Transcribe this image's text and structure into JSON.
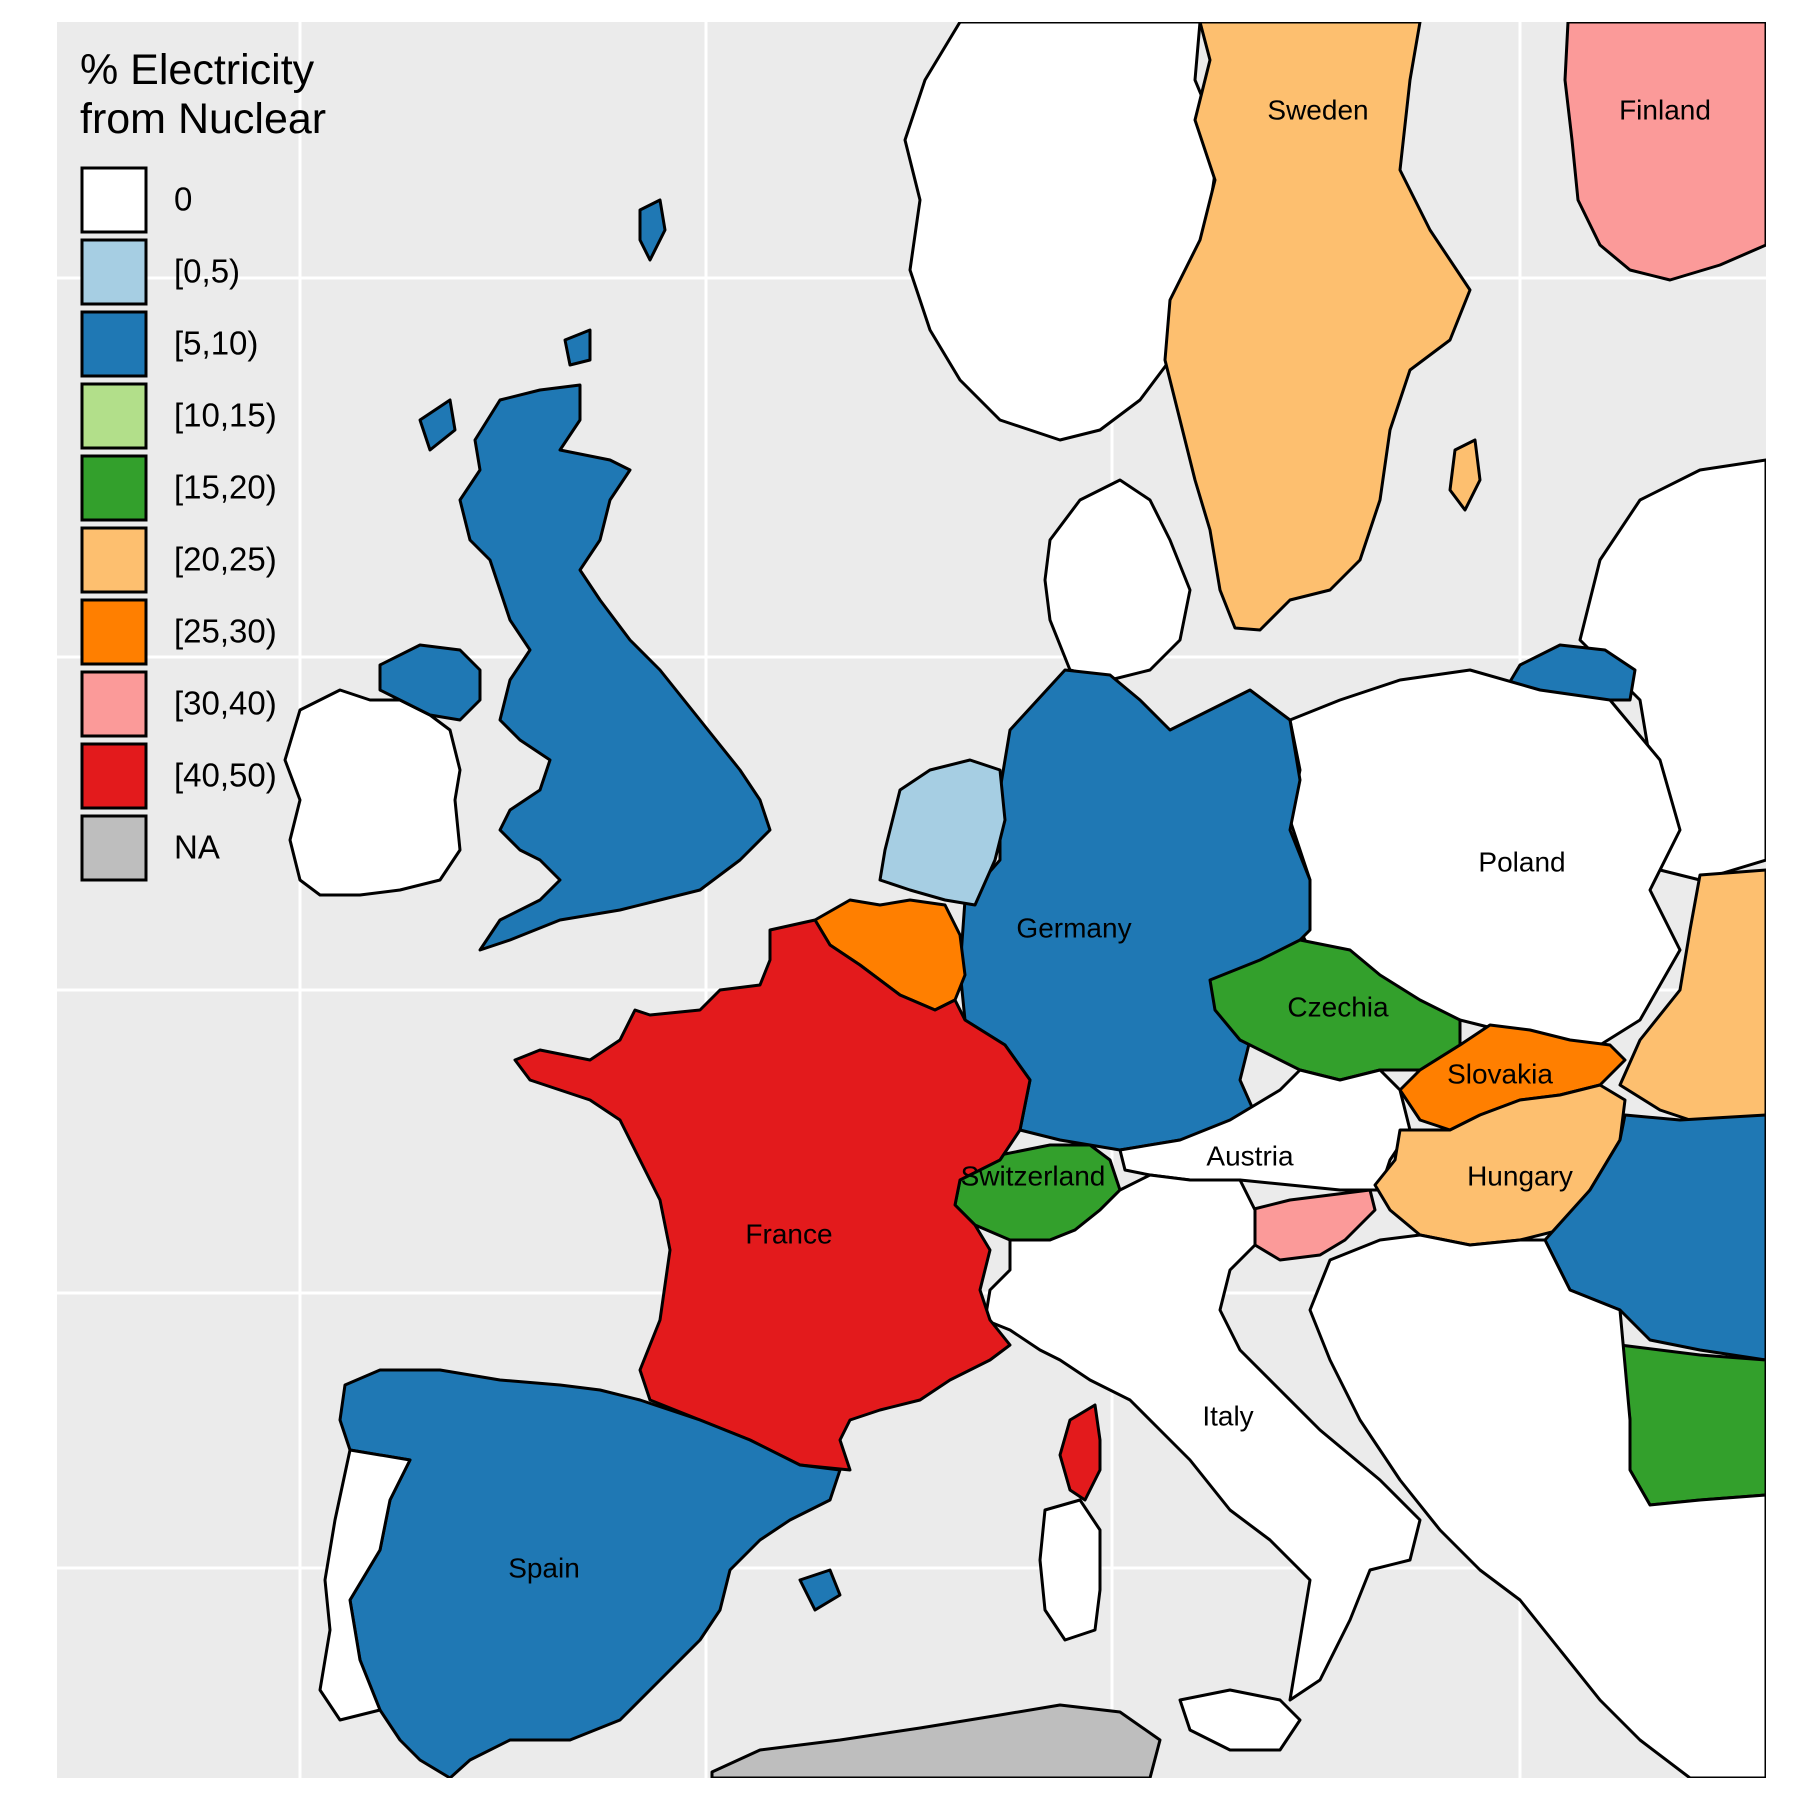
{
  "legend": {
    "title_line1": "% Electricity",
    "title_line2": "from Nuclear",
    "items": [
      {
        "label": "0",
        "color": "#FFFFFF"
      },
      {
        "label": "[0,5)",
        "color": "#A6CEE3"
      },
      {
        "label": "[5,10)",
        "color": "#1F78B4"
      },
      {
        "label": "[10,15)",
        "color": "#B2DF8A"
      },
      {
        "label": "[15,20)",
        "color": "#33A02C"
      },
      {
        "label": "[20,25)",
        "color": "#FDBF6F"
      },
      {
        "label": "[25,30)",
        "color": "#FF7F00"
      },
      {
        "label": "[30,40)",
        "color": "#FB9A99"
      },
      {
        "label": "[40,50)",
        "color": "#E31A1C"
      },
      {
        "label": "NA",
        "color": "#BEBEBE"
      }
    ]
  },
  "map": {
    "panel_background": "#EBEBEB",
    "gridline_color": "#FFFFFF",
    "country_labels": {
      "sweden": "Sweden",
      "finland": "Finland",
      "poland": "Poland",
      "germany": "Germany",
      "czechia": "Czechia",
      "slovakia": "Slovakia",
      "austria": "Austria",
      "hungary": "Hungary",
      "switzerland": "Switzerland",
      "france": "France",
      "italy": "Italy",
      "spain": "Spain"
    },
    "country_categories": {
      "sweden": "[20,25)",
      "finland": "[30,40)",
      "poland": "0",
      "germany": "[5,10)",
      "czechia": "[15,20)",
      "slovakia": "[25,30)",
      "austria": "0",
      "hungary": "[20,25)",
      "switzerland": "[15,20)",
      "france": "[40,50)",
      "italy": "0",
      "spain": "[5,10)",
      "united_kingdom": "[5,10)",
      "northern_ireland": "[5,10)",
      "ireland": "0",
      "netherlands": "[0,5)",
      "belgium": "[25,30)",
      "slovenia": "[30,40)",
      "norway": "0",
      "denmark": "0",
      "portugal": "0",
      "lithuania": "[5,10)",
      "ukraine": "[20,25)",
      "romania": "[5,10)",
      "bulgaria": "[15,20)",
      "north_africa": "NA"
    }
  }
}
